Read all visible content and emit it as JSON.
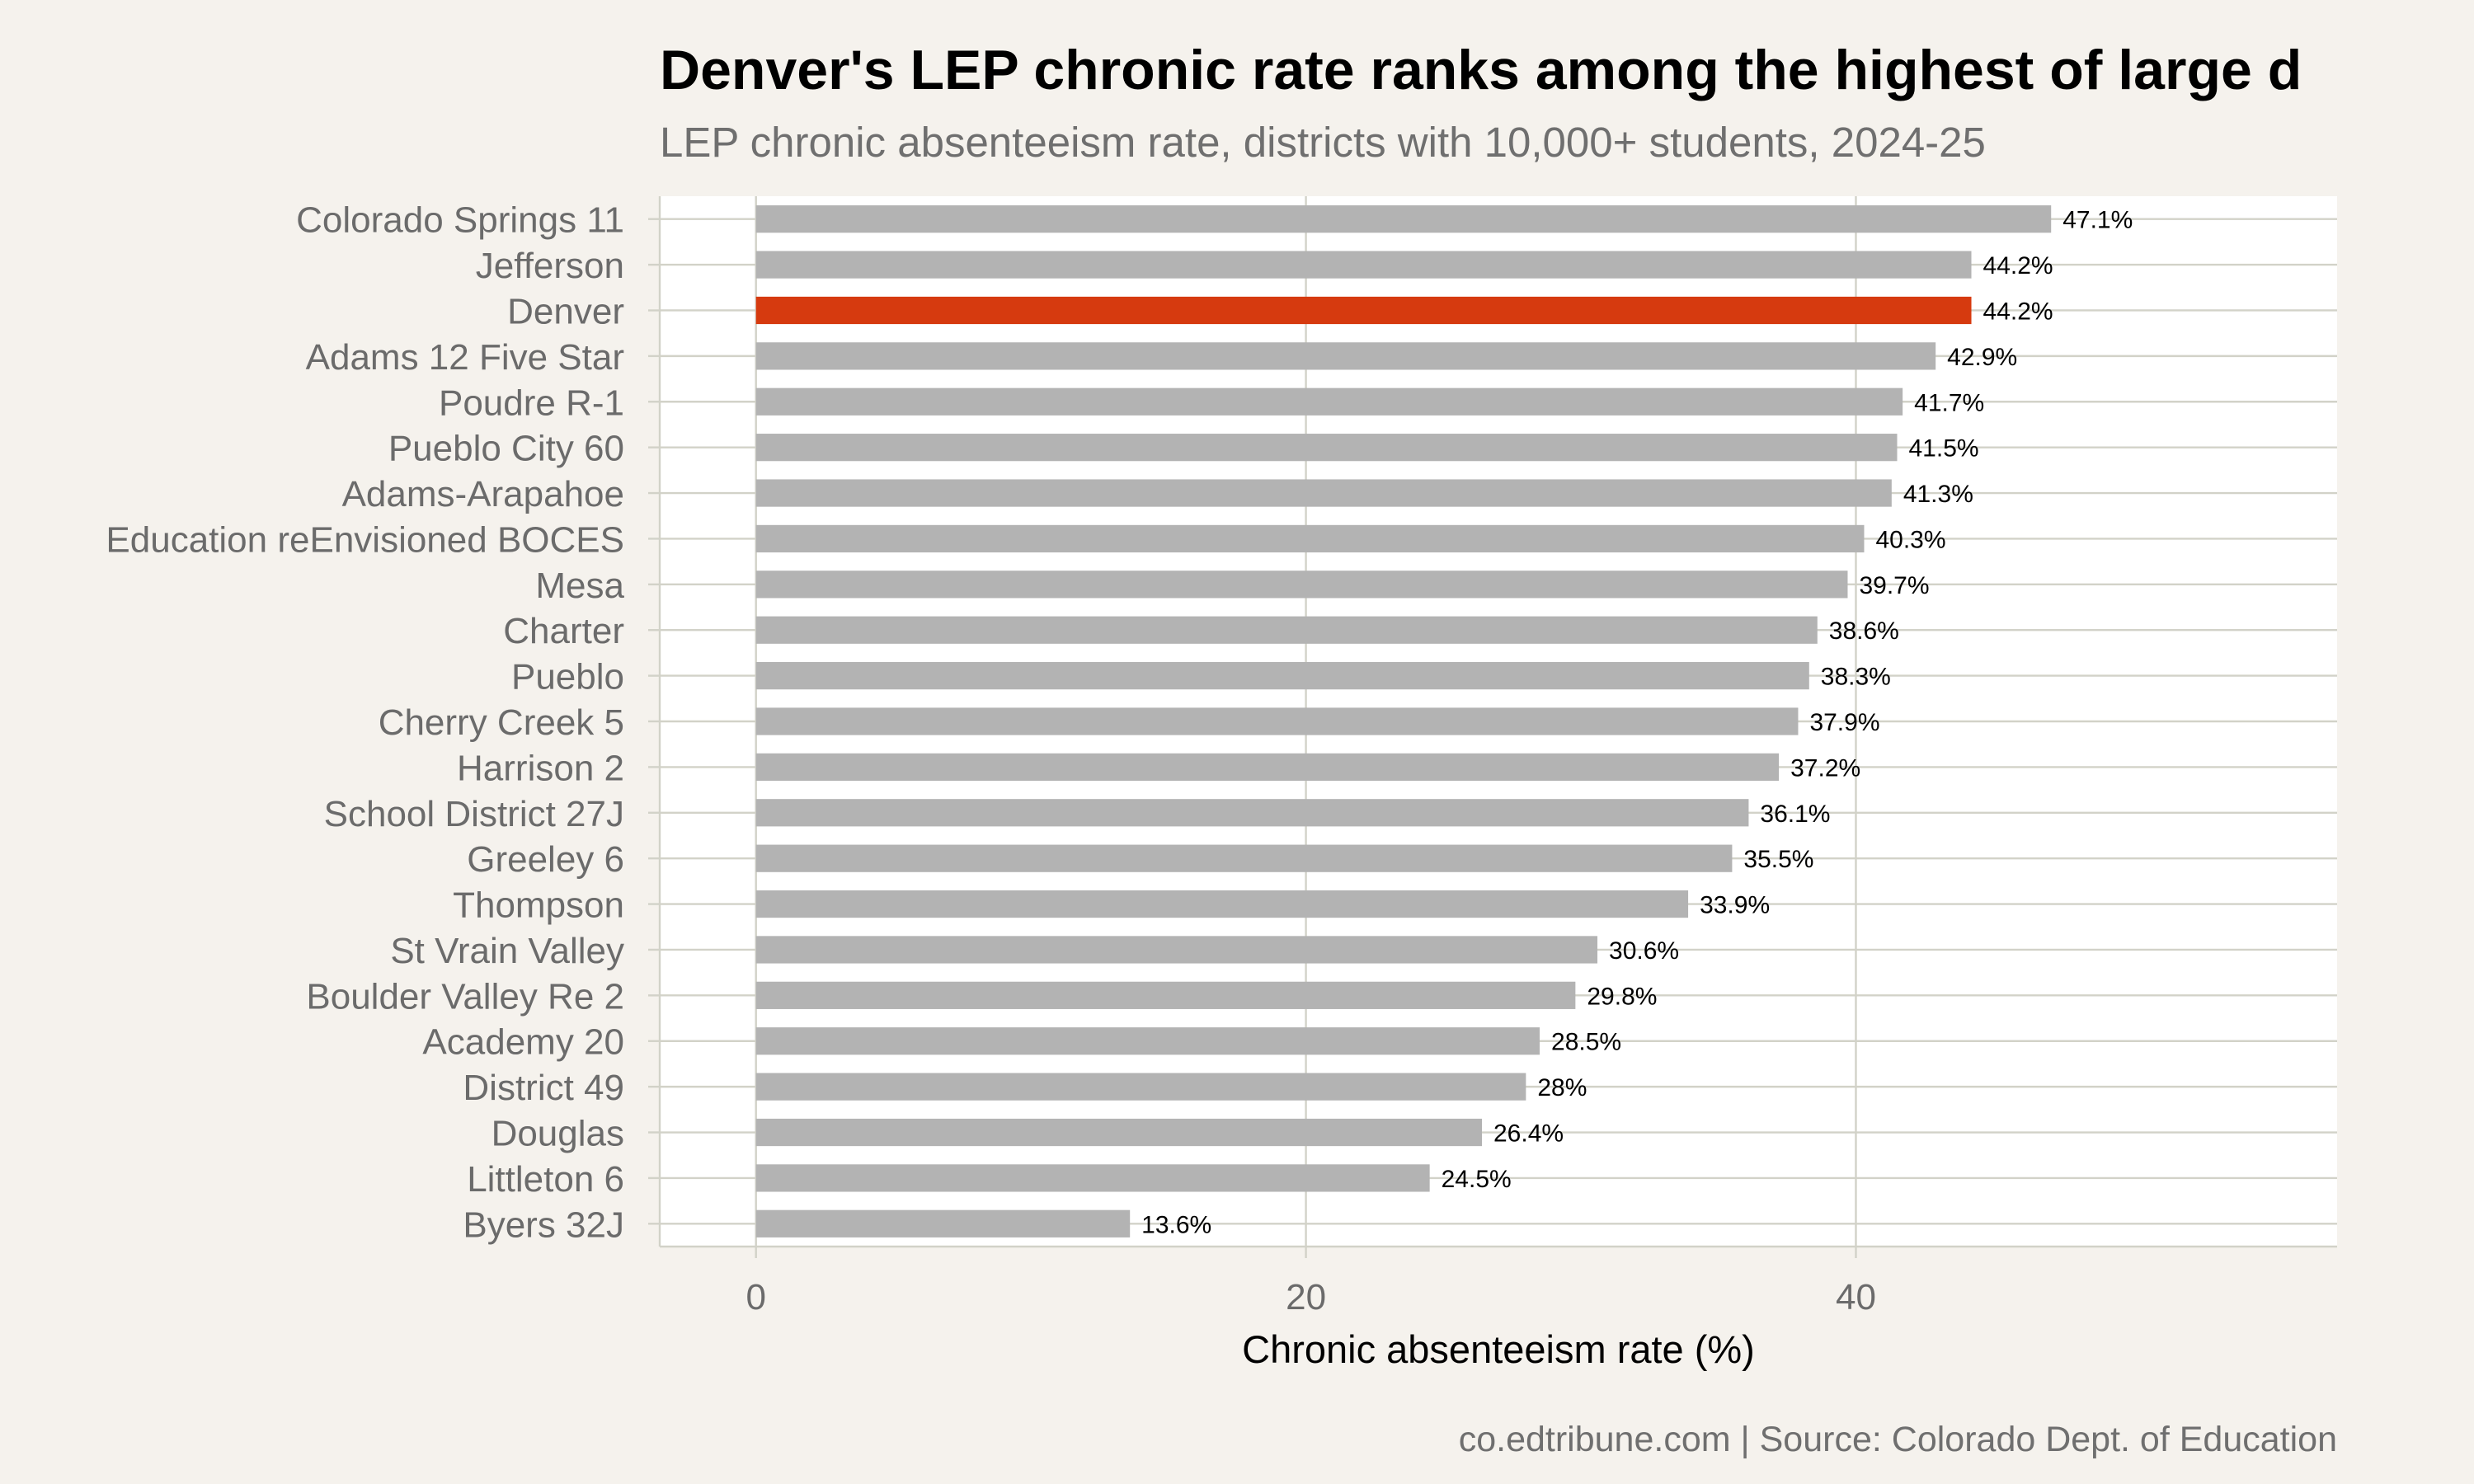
{
  "chart_data": {
    "type": "bar",
    "orientation": "horizontal",
    "title": "Denver's LEP chronic rate ranks among the highest of large d",
    "subtitle": "LEP chronic absenteeism rate, districts with 10,000+ students, 2024-25",
    "xlabel": "Chronic absenteeism rate (%)",
    "ylabel": "",
    "caption": "co.edtribune.com | Source: Colorado Dept. of Education",
    "xlim": [
      -3.5,
      57.5
    ],
    "x_ticks": [
      0,
      20,
      40
    ],
    "x_tick_labels": [
      "0",
      "20",
      "40"
    ],
    "grid": true,
    "legend": "none",
    "colors": {
      "default": "#b3b3b3",
      "highlight": "#d63a0f",
      "panel": "#ffffff",
      "background": "#f5f2ed",
      "grid": "#d2d2c8"
    },
    "highlight_category": "Denver",
    "categories": [
      "Colorado Springs 11",
      "Jefferson",
      "Denver",
      "Adams 12 Five Star",
      "Poudre R-1",
      "Pueblo City 60",
      "Adams-Arapahoe",
      "Education reEnvisioned BOCES",
      "Mesa",
      "Charter",
      "Pueblo",
      "Cherry Creek 5",
      "Harrison 2",
      "School District 27J",
      "Greeley 6",
      "Thompson",
      "St Vrain Valley",
      "Boulder Valley Re 2",
      "Academy 20",
      "District 49",
      "Douglas",
      "Littleton 6",
      "Byers 32J"
    ],
    "values": [
      47.1,
      44.2,
      44.2,
      42.9,
      41.7,
      41.5,
      41.3,
      40.3,
      39.7,
      38.6,
      38.3,
      37.9,
      37.2,
      36.1,
      35.5,
      33.9,
      30.6,
      29.8,
      28.5,
      28.0,
      26.4,
      24.5,
      13.6
    ],
    "value_labels": [
      "47.1%",
      "44.2%",
      "44.2%",
      "42.9%",
      "41.7%",
      "41.5%",
      "41.3%",
      "40.3%",
      "39.7%",
      "38.6%",
      "38.3%",
      "37.9%",
      "37.2%",
      "36.1%",
      "35.5%",
      "33.9%",
      "30.6%",
      "29.8%",
      "28.5%",
      "28%",
      "26.4%",
      "24.5%",
      "13.6%"
    ]
  }
}
